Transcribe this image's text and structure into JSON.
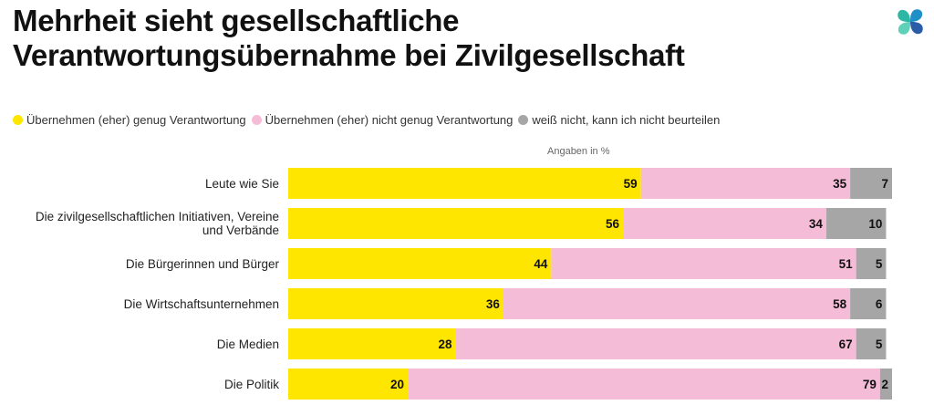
{
  "title_lines": [
    "Mehrheit sieht gesellschaftliche",
    "Verantwortungsübernahme bei Zivilgesellschaft"
  ],
  "logo_icon": "four-petal-logo-icon",
  "colors": {
    "yes": "#ffe600",
    "no": "#f5bcd8",
    "unknown": "#a6a6a6",
    "logo": [
      "#2bb7a3",
      "#1f8fc7",
      "#5fd1b8",
      "#2a5ca8"
    ]
  },
  "chart_data": {
    "type": "bar",
    "orientation": "horizontal",
    "stacked": true,
    "title": "Mehrheit sieht gesellschaftliche Verantwortungsübernahme bei Zivilgesellschaft",
    "unit_label": "Angaben in %",
    "xlim": [
      0,
      101
    ],
    "categories": [
      [
        "Leute wie Sie"
      ],
      [
        "Die zivilgesellschaftlichen Initiativen, Vereine",
        "und Verbände"
      ],
      [
        "Die Bürgerinnen und Bürger"
      ],
      [
        "Die Wirtschaftsunternehmen"
      ],
      [
        "Die Medien"
      ],
      [
        "Die Politik"
      ]
    ],
    "series": [
      {
        "name": "Übernehmen (eher) genug Verantwortung",
        "color": "#ffe600",
        "values": [
          59,
          56,
          44,
          36,
          28,
          20
        ]
      },
      {
        "name": "Übernehmen (eher) nicht genug Verantwortung",
        "color": "#f5bcd8",
        "values": [
          35,
          34,
          51,
          58,
          67,
          79
        ]
      },
      {
        "name": "weiß nicht, kann ich nicht beurteilen",
        "color": "#a6a6a6",
        "values": [
          7,
          10,
          5,
          6,
          5,
          2
        ]
      }
    ],
    "legend_position": "top-left"
  }
}
